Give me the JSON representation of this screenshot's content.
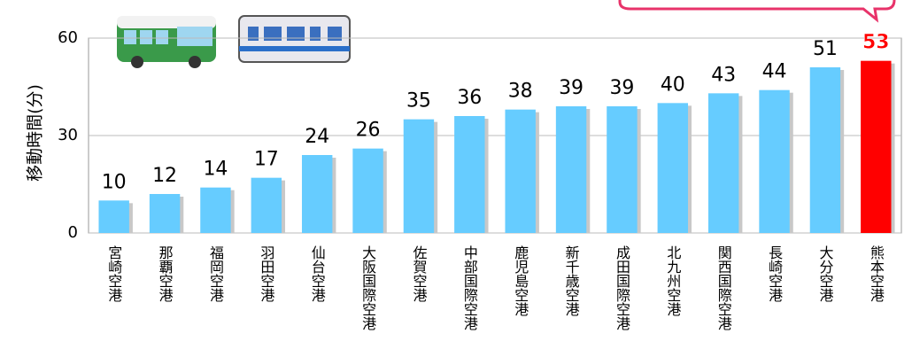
{
  "chart_data": {
    "type": "bar",
    "y_label": "移動時間(分)",
    "categories": [
      "宮崎空港",
      "那覇空港",
      "福岡空港",
      "羽田空港",
      "仙台空港",
      "大阪国際空港",
      "佐賀空港",
      "中部国際空港",
      "鹿児島空港",
      "新千歳空港",
      "成田国際空港",
      "北九州空港",
      "関西国際空港",
      "長崎空港",
      "大分空港",
      "熊本空港"
    ],
    "values": [
      10,
      12,
      14,
      17,
      24,
      26,
      35,
      36,
      38,
      39,
      39,
      40,
      43,
      44,
      51,
      53
    ],
    "colors": [
      "#66ccff",
      "#66ccff",
      "#66ccff",
      "#66ccff",
      "#66ccff",
      "#66ccff",
      "#66ccff",
      "#66ccff",
      "#66ccff",
      "#66ccff",
      "#66ccff",
      "#66ccff",
      "#66ccff",
      "#66ccff",
      "#66ccff",
      "#ff0000"
    ],
    "ylim": [
      0,
      60
    ],
    "yticks": [
      0,
      30,
      60
    ],
    "grid": true
  }
}
